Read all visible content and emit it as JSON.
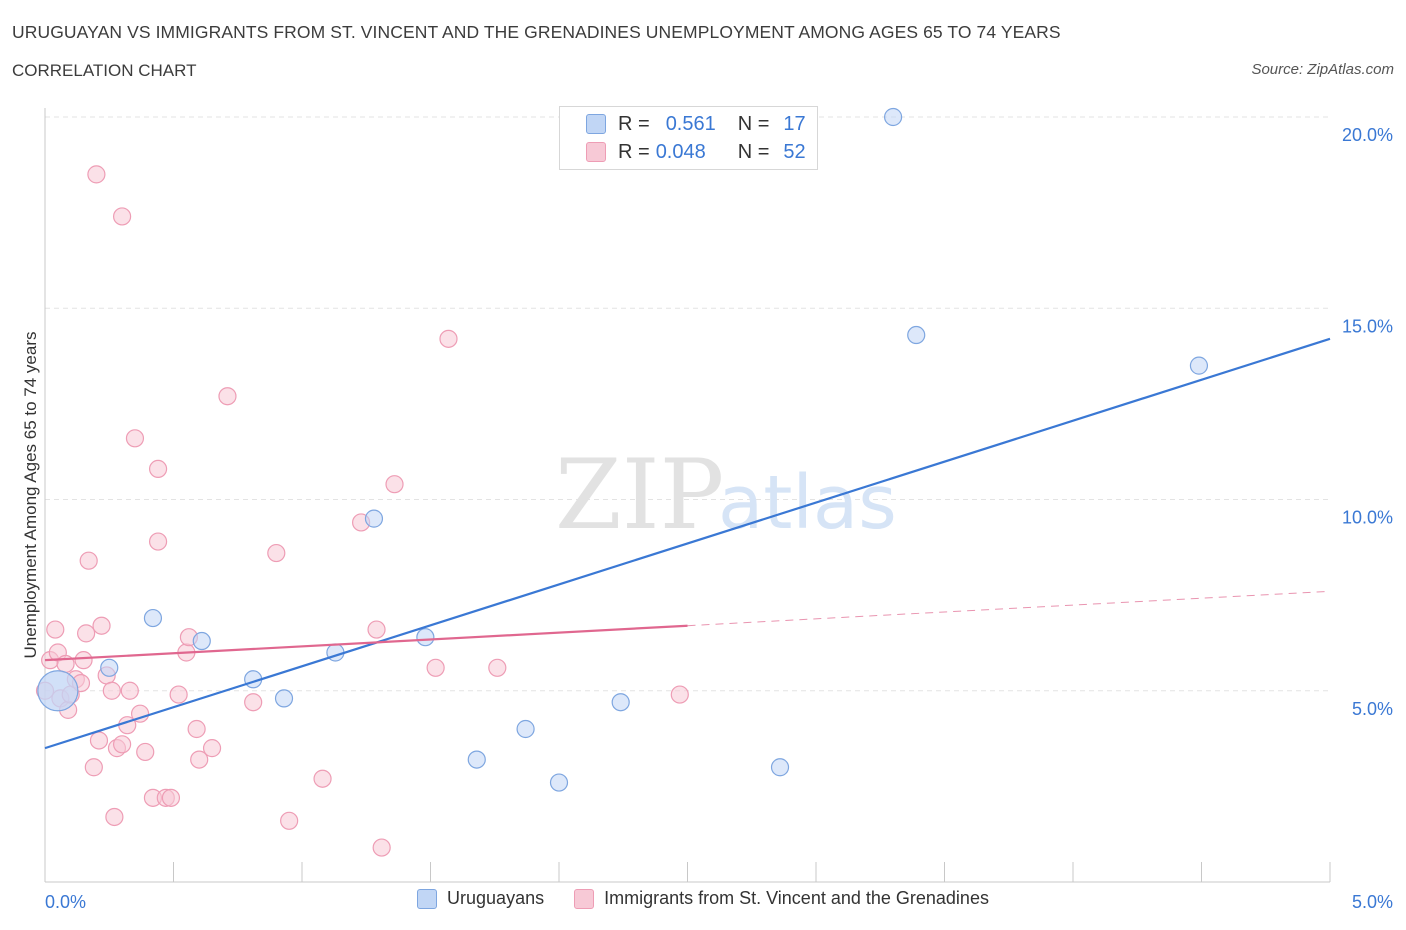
{
  "title": "URUGUAYAN VS IMMIGRANTS FROM ST. VINCENT AND THE GRENADINES UNEMPLOYMENT AMONG AGES 65 TO 74 YEARS",
  "subtitle": "CORRELATION CHART",
  "source": "Source: ZipAtlas.com",
  "watermark": {
    "zip": "ZIP",
    "atlas": "atlas"
  },
  "stats": [
    {
      "r_label": "R =",
      "r_value": "0.561",
      "n_label": "N =",
      "n_value": "17",
      "color": "#7ea6e0"
    },
    {
      "r_label": "R =",
      "r_value": "0.048",
      "n_label": "N =",
      "n_value": "52",
      "color": "#ee9db5"
    }
  ],
  "legend": [
    {
      "label": "Uruguayans",
      "color": "#7ea6e0"
    },
    {
      "label": "Immigrants from St. Vincent and the Grenadines",
      "color": "#ee9db5"
    }
  ],
  "chart_data": {
    "type": "scatter",
    "ylabel": "Unemployment Among Ages 65 to 74 years",
    "xlim": [
      0,
      5
    ],
    "ylim": [
      0,
      20.5
    ],
    "x_tick_labels": [
      "0.0%",
      "5.0%"
    ],
    "y_ticks": [
      5,
      10,
      15,
      20
    ],
    "y_tick_labels": [
      "5.0%",
      "10.0%",
      "15.0%",
      "20.0%"
    ],
    "grid": true,
    "series": [
      {
        "name": "Uruguayans",
        "color": "#3a78d4",
        "fill": "#c1d6f5",
        "points": [
          [
            0.05,
            5.0
          ],
          [
            0.25,
            5.6
          ],
          [
            0.42,
            6.9
          ],
          [
            0.61,
            6.3
          ],
          [
            0.81,
            5.3
          ],
          [
            0.93,
            4.8
          ],
          [
            1.13,
            6.0
          ],
          [
            1.28,
            9.5
          ],
          [
            1.48,
            6.4
          ],
          [
            1.68,
            3.2
          ],
          [
            1.87,
            4.0
          ],
          [
            2.0,
            2.6
          ],
          [
            2.24,
            4.7
          ],
          [
            2.86,
            3.0
          ],
          [
            3.3,
            20.0
          ],
          [
            3.39,
            14.3
          ],
          [
            4.49,
            13.5
          ]
        ],
        "trend": {
          "x": [
            0,
            5
          ],
          "y": [
            3.5,
            14.2
          ]
        }
      },
      {
        "name": "Immigrants from St. Vincent and the Grenadines",
        "color": "#e0678f",
        "fill": "#f7c9d6",
        "points": [
          [
            0.0,
            5.0
          ],
          [
            0.02,
            5.8
          ],
          [
            0.04,
            6.6
          ],
          [
            0.05,
            6.0
          ],
          [
            0.06,
            4.8
          ],
          [
            0.08,
            5.7
          ],
          [
            0.09,
            4.5
          ],
          [
            0.1,
            4.9
          ],
          [
            0.12,
            5.3
          ],
          [
            0.14,
            5.2
          ],
          [
            0.15,
            5.8
          ],
          [
            0.16,
            6.5
          ],
          [
            0.17,
            8.4
          ],
          [
            0.19,
            3.0
          ],
          [
            0.2,
            18.5
          ],
          [
            0.21,
            3.7
          ],
          [
            0.22,
            6.7
          ],
          [
            0.24,
            5.4
          ],
          [
            0.26,
            5.0
          ],
          [
            0.27,
            1.7
          ],
          [
            0.28,
            3.5
          ],
          [
            0.3,
            3.6
          ],
          [
            0.3,
            17.4
          ],
          [
            0.32,
            4.1
          ],
          [
            0.33,
            5.0
          ],
          [
            0.35,
            11.6
          ],
          [
            0.37,
            4.4
          ],
          [
            0.39,
            3.4
          ],
          [
            0.42,
            2.2
          ],
          [
            0.44,
            8.9
          ],
          [
            0.44,
            10.8
          ],
          [
            0.47,
            2.2
          ],
          [
            0.49,
            2.2
          ],
          [
            0.52,
            4.9
          ],
          [
            0.55,
            6.0
          ],
          [
            0.56,
            6.4
          ],
          [
            0.59,
            4.0
          ],
          [
            0.6,
            3.2
          ],
          [
            0.65,
            3.5
          ],
          [
            0.71,
            12.7
          ],
          [
            0.81,
            4.7
          ],
          [
            0.9,
            8.6
          ],
          [
            0.95,
            1.6
          ],
          [
            1.08,
            2.7
          ],
          [
            1.23,
            9.4
          ],
          [
            1.29,
            6.6
          ],
          [
            1.31,
            0.9
          ],
          [
            1.36,
            10.4
          ],
          [
            1.52,
            5.6
          ],
          [
            1.57,
            14.2
          ],
          [
            1.76,
            5.6
          ],
          [
            2.47,
            4.9
          ]
        ],
        "trend": {
          "x": [
            0,
            2.5
          ],
          "y": [
            5.8,
            6.7
          ]
        },
        "trend_dashed": {
          "x": [
            2.5,
            5
          ],
          "y": [
            6.7,
            7.6
          ]
        }
      }
    ]
  }
}
